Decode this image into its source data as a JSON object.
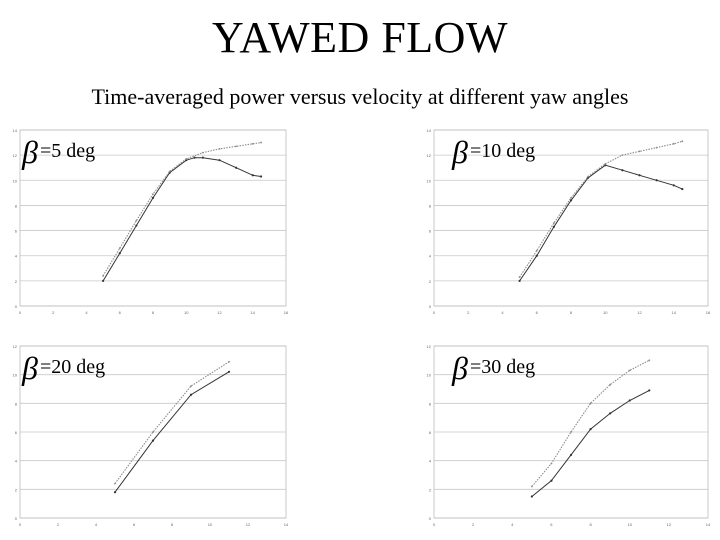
{
  "title": "YAWED FLOW",
  "subtitle": "Time-averaged power versus velocity at different yaw angles",
  "colors": {
    "series_solid": "#333333",
    "series_dotted": "#8c8c8c",
    "grid": "#c8c8c8"
  },
  "panels": [
    {
      "label_symbol": "β",
      "label_text": "=5 deg"
    },
    {
      "label_symbol": "β",
      "label_text": "=10 deg"
    },
    {
      "label_symbol": "β",
      "label_text": "=20 deg"
    },
    {
      "label_symbol": "β",
      "label_text": "=30 deg"
    }
  ],
  "chart_data": [
    {
      "type": "line",
      "grid": true,
      "xlim": [
        0,
        16
      ],
      "ylim": [
        0,
        14
      ],
      "xticks": [
        0,
        2,
        4,
        6,
        8,
        10,
        12,
        14,
        16
      ],
      "yticks": [
        0,
        2,
        4,
        6,
        8,
        10,
        12,
        14
      ],
      "series": [
        {
          "style": "solid",
          "x": [
            5,
            6,
            7,
            8,
            9,
            10,
            10.5,
            11,
            12,
            13,
            14,
            14.5
          ],
          "y": [
            2,
            4.2,
            6.4,
            8.6,
            10.6,
            11.6,
            11.8,
            11.8,
            11.6,
            11,
            10.4,
            10.3
          ]
        },
        {
          "style": "dotted",
          "x": [
            5,
            6,
            7,
            8,
            9,
            10,
            11,
            12,
            13,
            14,
            14.5
          ],
          "y": [
            2.4,
            4.6,
            6.8,
            8.9,
            10.7,
            11.7,
            12.2,
            12.5,
            12.7,
            12.9,
            13
          ]
        }
      ]
    },
    {
      "type": "line",
      "grid": true,
      "xlim": [
        0,
        16
      ],
      "ylim": [
        0,
        14
      ],
      "xticks": [
        0,
        2,
        4,
        6,
        8,
        10,
        12,
        14,
        16
      ],
      "yticks": [
        0,
        2,
        4,
        6,
        8,
        10,
        12,
        14
      ],
      "series": [
        {
          "style": "solid",
          "x": [
            5,
            6,
            7,
            8,
            9,
            10,
            11,
            12,
            13,
            14,
            14.5
          ],
          "y": [
            2,
            4,
            6.3,
            8.4,
            10.2,
            11.2,
            10.8,
            10.4,
            10,
            9.6,
            9.3
          ]
        },
        {
          "style": "dotted",
          "x": [
            5,
            6,
            7,
            8,
            9,
            10,
            11,
            12,
            13,
            14,
            14.5
          ],
          "y": [
            2.3,
            4.4,
            6.6,
            8.6,
            10.3,
            11.3,
            12,
            12.3,
            12.6,
            12.9,
            13.1
          ]
        }
      ]
    },
    {
      "type": "line",
      "grid": true,
      "xlim": [
        0,
        14
      ],
      "ylim": [
        0,
        12
      ],
      "xticks": [
        0,
        2,
        4,
        6,
        8,
        10,
        12,
        14
      ],
      "yticks": [
        0,
        2,
        4,
        6,
        8,
        10,
        12
      ],
      "series": [
        {
          "style": "solid",
          "x": [
            5,
            7,
            9,
            11
          ],
          "y": [
            1.8,
            5.4,
            8.6,
            10.2
          ]
        },
        {
          "style": "dotted",
          "x": [
            5,
            7,
            9,
            11
          ],
          "y": [
            2.4,
            6.0,
            9.2,
            10.9
          ]
        }
      ]
    },
    {
      "type": "line",
      "grid": true,
      "xlim": [
        0,
        14
      ],
      "ylim": [
        0,
        12
      ],
      "xticks": [
        0,
        2,
        4,
        6,
        8,
        10,
        12,
        14
      ],
      "yticks": [
        0,
        2,
        4,
        6,
        8,
        10,
        12
      ],
      "series": [
        {
          "style": "solid",
          "x": [
            5,
            6,
            7,
            8,
            9,
            10,
            11
          ],
          "y": [
            1.5,
            2.6,
            4.4,
            6.2,
            7.3,
            8.2,
            8.9
          ]
        },
        {
          "style": "dotted",
          "x": [
            5,
            6,
            7,
            8,
            9,
            10,
            11
          ],
          "y": [
            2.2,
            3.8,
            6.0,
            8.0,
            9.3,
            10.3,
            11.0
          ]
        }
      ]
    }
  ]
}
